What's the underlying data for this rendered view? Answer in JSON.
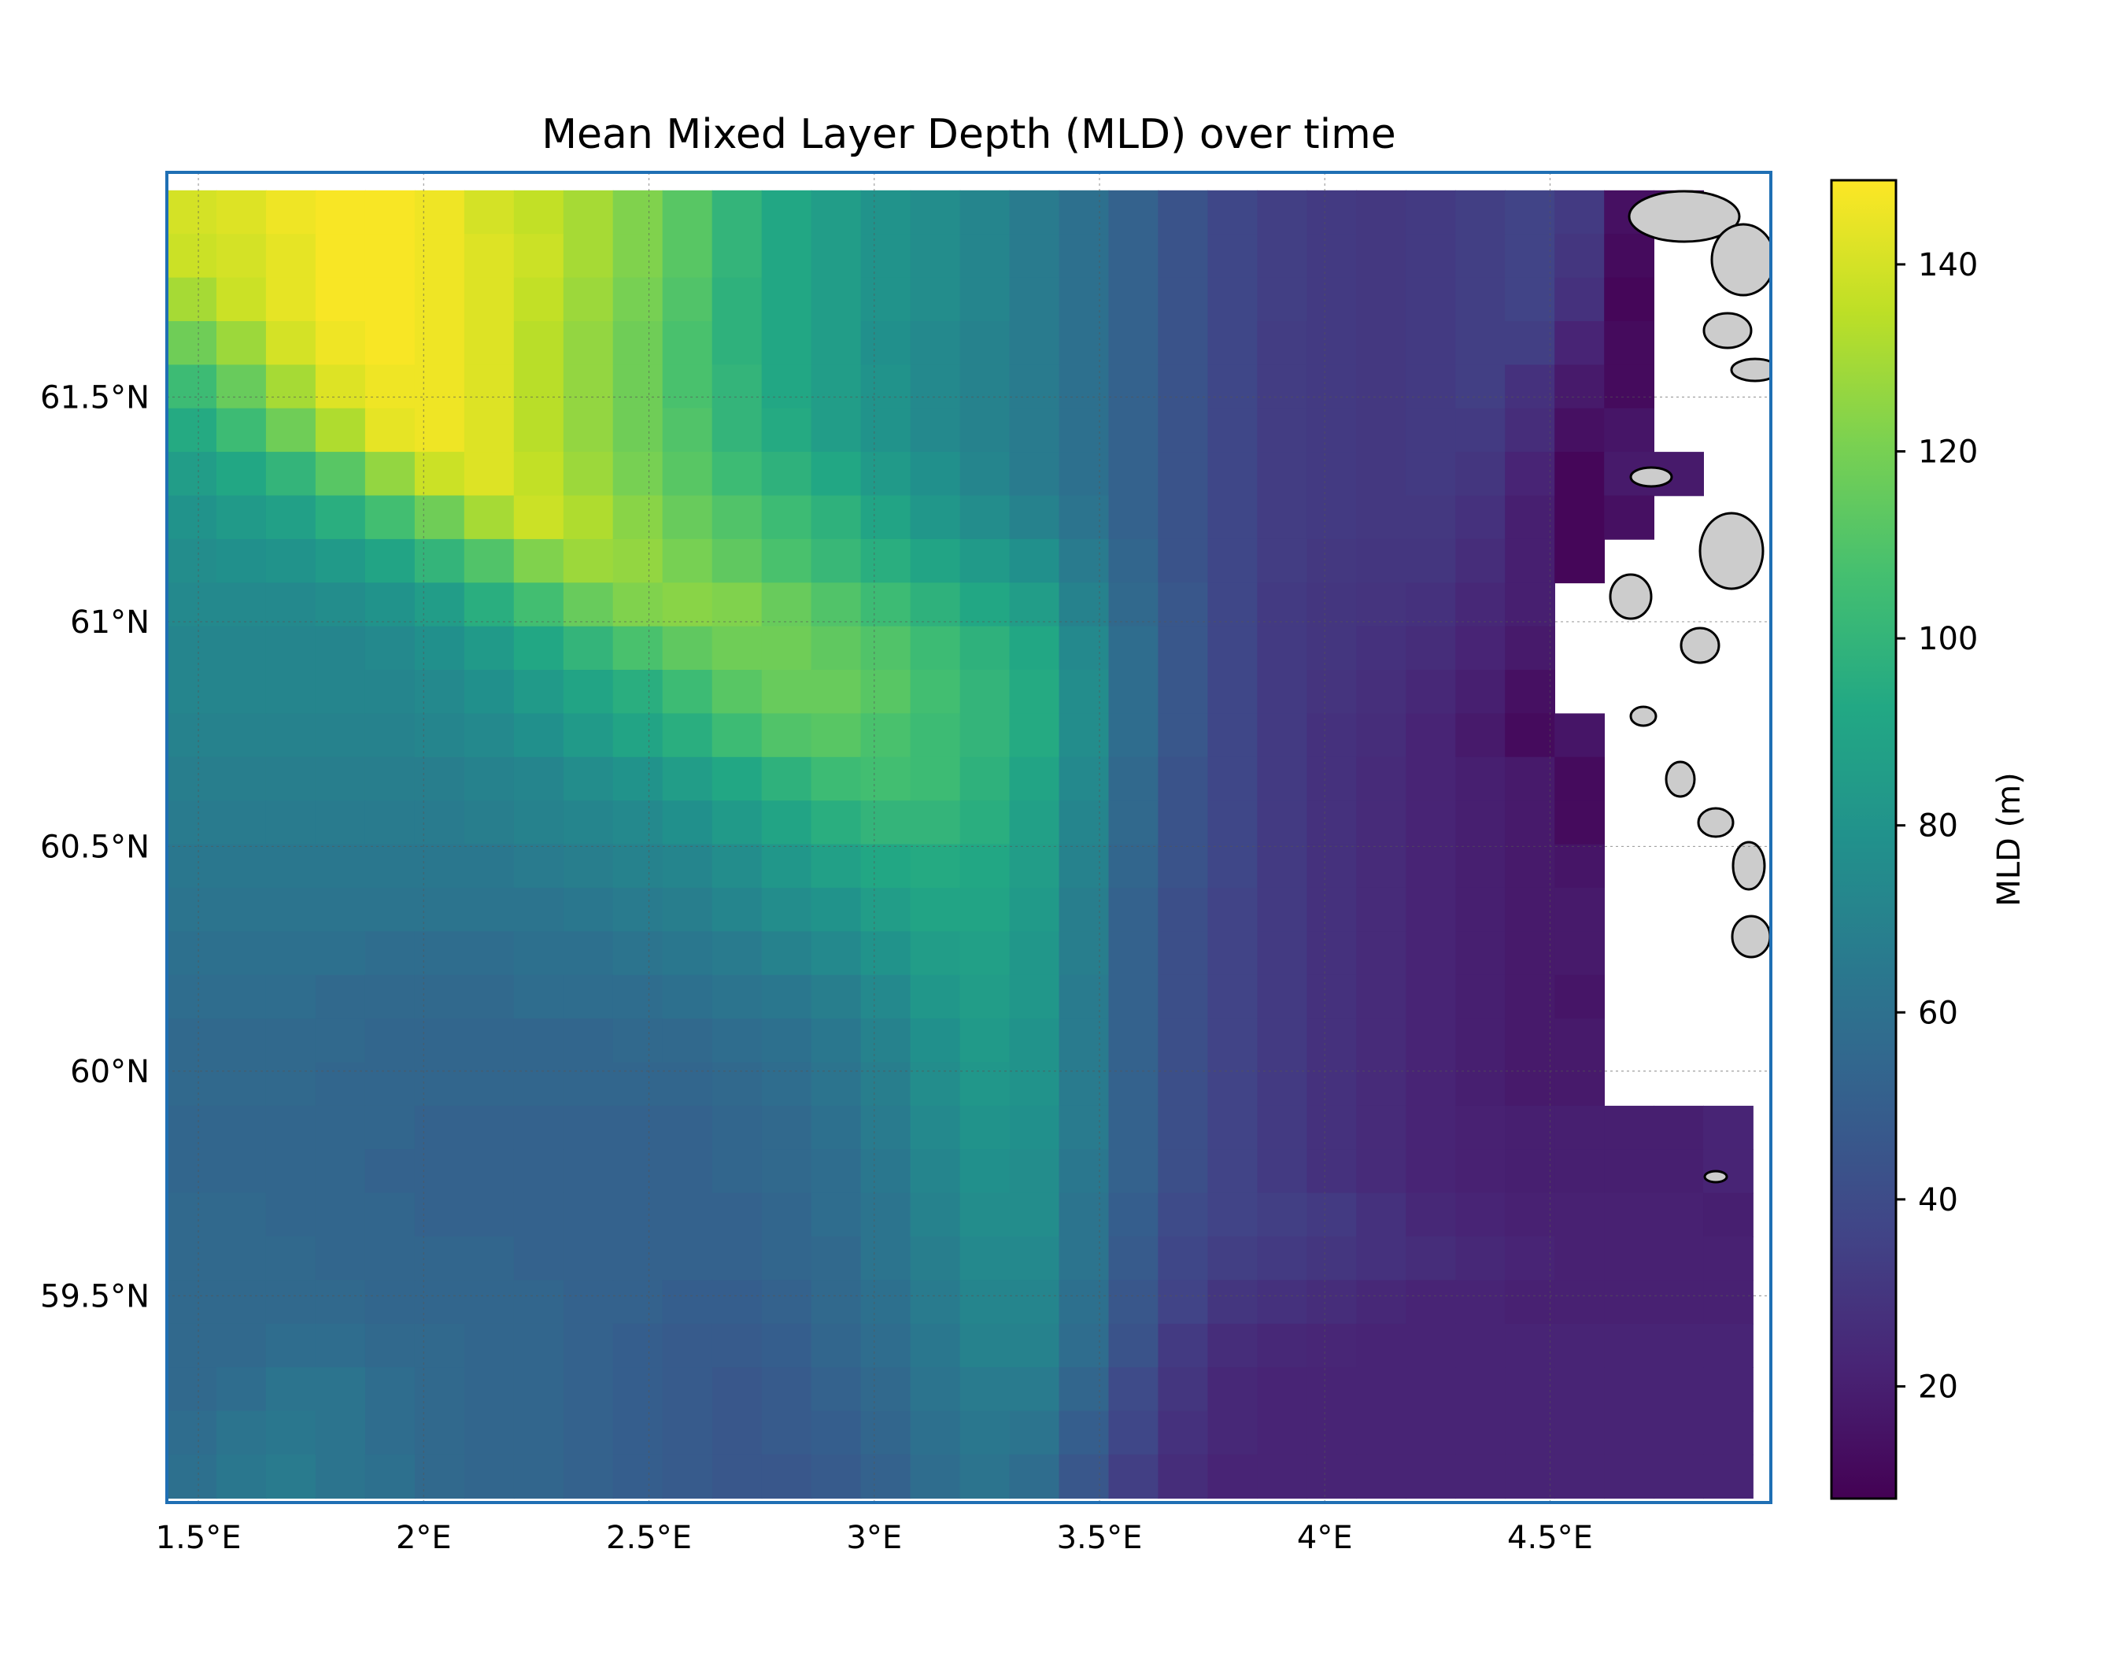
{
  "chart_data": {
    "type": "heatmap",
    "title": "Mean Mixed Layer Depth (MLD) over time",
    "xlabel": "",
    "ylabel": "",
    "colorbar_label": "MLD (m)",
    "colormap": "viridis",
    "color_range": [
      8,
      149
    ],
    "colorbar_ticks": [
      "20",
      "40",
      "60",
      "80",
      "100",
      "120",
      "140"
    ],
    "colorbar_tick_values": [
      20,
      40,
      60,
      80,
      100,
      120,
      140
    ],
    "x_tick_labels": [
      "1.5°E",
      "2°E",
      "2.5°E",
      "3°E",
      "3.5°E",
      "4°E",
      "4.5°E"
    ],
    "x_tick_values": [
      1.5,
      2.0,
      2.5,
      3.0,
      3.5,
      4.0,
      4.5
    ],
    "y_tick_labels": [
      "59.5°N",
      "60°N",
      "60.5°N",
      "61°N",
      "61.5°N"
    ],
    "y_tick_values": [
      59.5,
      60.0,
      60.5,
      61.0,
      61.5
    ],
    "xlim": [
      1.43,
      4.99
    ],
    "ylim": [
      59.04,
      62.0
    ],
    "grid": true,
    "land_color": "#cccccc",
    "grid_cell_size_deg": [
      0.11,
      0.1
    ],
    "grid_x_range": [
      1.43,
      4.95
    ],
    "grid_y_range": [
      59.05,
      61.96
    ],
    "grid_columns": 32,
    "grid_rows": 30,
    "mld_field_note_rows": "rows listed from north (top) to south (bottom), columns from west to east; null = land/missing",
    "values": [
      [
        140,
        142,
        146,
        148,
        148,
        146,
        140,
        136,
        130,
        122,
        112,
        100,
        92,
        86,
        80,
        76,
        72,
        66,
        60,
        52,
        44,
        38,
        34,
        32,
        31,
        32,
        34,
        36,
        32,
        14,
        14,
        null
      ],
      [
        138,
        140,
        144,
        148,
        148,
        146,
        142,
        138,
        130,
        122,
        112,
        100,
        92,
        86,
        80,
        76,
        72,
        66,
        60,
        52,
        44,
        38,
        34,
        32,
        31,
        32,
        34,
        36,
        30,
        12,
        null,
        null
      ],
      [
        130,
        138,
        144,
        148,
        148,
        146,
        142,
        136,
        128,
        120,
        110,
        98,
        92,
        86,
        80,
        76,
        72,
        66,
        60,
        52,
        44,
        38,
        34,
        32,
        31,
        32,
        34,
        36,
        28,
        10,
        null,
        null
      ],
      [
        118,
        128,
        140,
        146,
        148,
        146,
        142,
        134,
        126,
        118,
        108,
        98,
        92,
        86,
        78,
        74,
        70,
        66,
        60,
        52,
        44,
        38,
        33,
        32,
        31,
        32,
        34,
        34,
        22,
        12,
        null,
        null
      ],
      [
        104,
        116,
        130,
        142,
        146,
        146,
        142,
        134,
        126,
        118,
        108,
        100,
        92,
        86,
        80,
        74,
        70,
        66,
        60,
        52,
        44,
        38,
        33,
        32,
        31,
        32,
        34,
        28,
        18,
        12,
        null,
        null
      ],
      [
        94,
        104,
        118,
        132,
        144,
        146,
        142,
        134,
        126,
        118,
        110,
        100,
        94,
        86,
        80,
        74,
        70,
        66,
        60,
        52,
        44,
        38,
        33,
        32,
        31,
        32,
        32,
        26,
        14,
        16,
        null,
        null
      ],
      [
        86,
        92,
        100,
        112,
        126,
        138,
        142,
        136,
        128,
        120,
        112,
        104,
        98,
        92,
        84,
        78,
        72,
        66,
        60,
        52,
        44,
        38,
        33,
        32,
        31,
        32,
        30,
        22,
        10,
        18,
        18,
        null
      ],
      [
        80,
        84,
        88,
        96,
        106,
        118,
        130,
        138,
        132,
        124,
        116,
        110,
        104,
        98,
        90,
        82,
        76,
        70,
        62,
        52,
        44,
        38,
        33,
        32,
        31,
        31,
        28,
        20,
        10,
        14,
        null,
        null
      ],
      [
        76,
        78,
        80,
        84,
        90,
        100,
        110,
        122,
        128,
        126,
        120,
        114,
        108,
        102,
        96,
        90,
        84,
        78,
        66,
        54,
        44,
        38,
        33,
        31,
        30,
        30,
        26,
        20,
        10,
        null,
        null,
        null
      ],
      [
        74,
        74,
        74,
        76,
        80,
        86,
        96,
        106,
        116,
        122,
        124,
        122,
        116,
        110,
        104,
        98,
        92,
        86,
        70,
        56,
        46,
        38,
        32,
        30,
        29,
        28,
        24,
        20,
        null,
        null,
        null,
        null
      ],
      [
        72,
        72,
        72,
        72,
        74,
        78,
        84,
        92,
        100,
        108,
        114,
        118,
        118,
        114,
        110,
        104,
        98,
        92,
        74,
        58,
        46,
        38,
        32,
        30,
        28,
        26,
        22,
        18,
        null,
        null,
        null,
        null
      ],
      [
        72,
        72,
        72,
        72,
        72,
        74,
        78,
        84,
        90,
        96,
        104,
        112,
        116,
        116,
        112,
        106,
        100,
        94,
        76,
        58,
        46,
        38,
        32,
        29,
        27,
        24,
        20,
        14,
        null,
        null,
        null,
        null
      ],
      [
        70,
        70,
        70,
        70,
        70,
        72,
        74,
        78,
        84,
        90,
        96,
        104,
        110,
        112,
        108,
        104,
        100,
        94,
        76,
        58,
        46,
        38,
        32,
        28,
        26,
        22,
        18,
        12,
        16,
        null,
        null,
        null
      ],
      [
        68,
        68,
        68,
        68,
        68,
        68,
        70,
        72,
        76,
        80,
        86,
        92,
        98,
        104,
        106,
        104,
        98,
        90,
        74,
        56,
        44,
        38,
        32,
        28,
        25,
        22,
        20,
        18,
        12,
        null,
        null,
        null
      ],
      [
        66,
        66,
        66,
        66,
        66,
        66,
        68,
        70,
        72,
        74,
        78,
        84,
        90,
        96,
        100,
        100,
        96,
        88,
        72,
        56,
        44,
        38,
        32,
        28,
        25,
        22,
        20,
        18,
        12,
        null,
        null,
        null
      ],
      [
        64,
        64,
        64,
        64,
        64,
        64,
        64,
        66,
        68,
        70,
        72,
        76,
        82,
        88,
        92,
        94,
        92,
        86,
        70,
        54,
        44,
        38,
        32,
        28,
        25,
        22,
        20,
        18,
        16,
        null,
        null,
        null
      ],
      [
        62,
        62,
        62,
        62,
        62,
        62,
        62,
        62,
        64,
        66,
        68,
        72,
        76,
        80,
        86,
        90,
        90,
        84,
        68,
        52,
        42,
        36,
        32,
        28,
        25,
        22,
        20,
        18,
        18,
        null,
        null,
        null
      ],
      [
        60,
        60,
        60,
        60,
        58,
        58,
        58,
        60,
        60,
        62,
        64,
        66,
        70,
        74,
        80,
        86,
        88,
        82,
        68,
        52,
        42,
        36,
        32,
        28,
        25,
        22,
        20,
        18,
        18,
        null,
        null,
        null
      ],
      [
        58,
        58,
        58,
        56,
        56,
        56,
        56,
        58,
        58,
        58,
        60,
        62,
        64,
        68,
        74,
        82,
        86,
        82,
        66,
        52,
        42,
        36,
        32,
        28,
        25,
        22,
        20,
        18,
        16,
        null,
        null,
        null
      ],
      [
        56,
        56,
        56,
        56,
        54,
        54,
        54,
        54,
        54,
        56,
        56,
        58,
        60,
        64,
        70,
        78,
        84,
        80,
        66,
        52,
        42,
        36,
        32,
        28,
        25,
        22,
        20,
        18,
        18,
        null,
        null,
        null
      ],
      [
        56,
        56,
        56,
        54,
        54,
        54,
        54,
        54,
        54,
        54,
        54,
        56,
        58,
        62,
        68,
        76,
        82,
        80,
        66,
        52,
        42,
        36,
        32,
        28,
        25,
        22,
        20,
        18,
        18,
        null,
        null,
        null
      ],
      [
        54,
        54,
        54,
        54,
        54,
        52,
        52,
        52,
        52,
        52,
        52,
        54,
        56,
        60,
        66,
        74,
        80,
        78,
        66,
        52,
        42,
        36,
        32,
        28,
        25,
        22,
        21,
        20,
        20,
        20,
        20,
        22
      ],
      [
        54,
        54,
        54,
        54,
        52,
        52,
        52,
        52,
        52,
        52,
        52,
        54,
        56,
        58,
        64,
        72,
        78,
        76,
        64,
        52,
        42,
        36,
        32,
        28,
        25,
        22,
        21,
        20,
        20,
        20,
        20,
        22
      ],
      [
        56,
        56,
        54,
        54,
        54,
        52,
        52,
        52,
        52,
        52,
        52,
        52,
        54,
        58,
        62,
        70,
        76,
        76,
        62,
        50,
        40,
        36,
        34,
        32,
        28,
        24,
        22,
        21,
        21,
        21,
        21,
        20
      ],
      [
        56,
        56,
        56,
        54,
        54,
        54,
        54,
        52,
        52,
        52,
        52,
        52,
        54,
        56,
        62,
        68,
        74,
        74,
        62,
        48,
        38,
        34,
        32,
        30,
        28,
        26,
        24,
        22,
        21,
        21,
        21,
        21
      ],
      [
        56,
        56,
        56,
        56,
        54,
        54,
        54,
        54,
        52,
        52,
        50,
        50,
        52,
        56,
        60,
        66,
        72,
        72,
        60,
        46,
        36,
        30,
        28,
        26,
        24,
        22,
        22,
        21,
        21,
        21,
        21,
        21
      ],
      [
        56,
        56,
        58,
        58,
        56,
        56,
        54,
        54,
        52,
        50,
        48,
        48,
        50,
        54,
        58,
        64,
        70,
        70,
        58,
        44,
        32,
        26,
        24,
        23,
        22,
        22,
        22,
        22,
        22,
        22,
        22,
        22
      ],
      [
        56,
        58,
        62,
        62,
        58,
        56,
        54,
        54,
        52,
        50,
        48,
        46,
        48,
        52,
        56,
        62,
        66,
        66,
        54,
        40,
        30,
        24,
        22,
        22,
        22,
        22,
        22,
        22,
        22,
        22,
        22,
        22
      ],
      [
        58,
        62,
        64,
        62,
        58,
        56,
        54,
        54,
        52,
        50,
        48,
        46,
        48,
        50,
        54,
        60,
        64,
        62,
        50,
        38,
        28,
        24,
        22,
        22,
        22,
        22,
        22,
        22,
        22,
        22,
        22,
        22
      ],
      [
        60,
        64,
        66,
        62,
        60,
        56,
        54,
        54,
        52,
        50,
        48,
        46,
        46,
        48,
        52,
        58,
        62,
        58,
        46,
        34,
        26,
        22,
        22,
        22,
        22,
        22,
        22,
        22,
        22,
        22,
        22,
        22
      ]
    ]
  }
}
